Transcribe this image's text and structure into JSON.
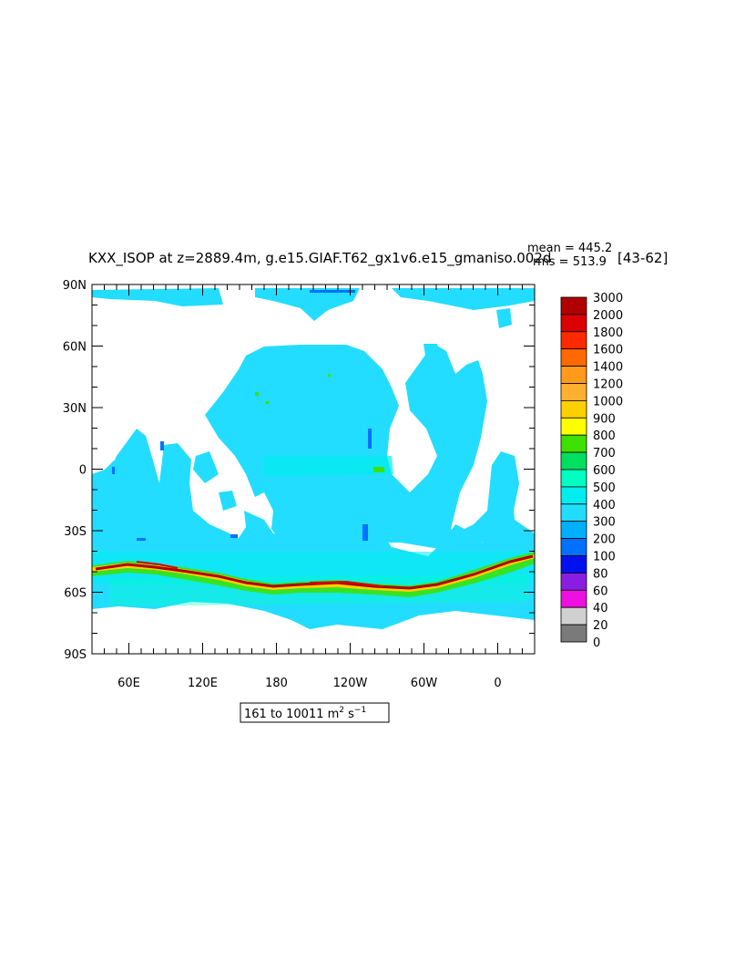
{
  "title": "KXX_ISOP at z=2889.4m, g.e15.GIAF.T62_gx1v6.e15_gmaniso.002d",
  "years": "[43-62]",
  "stats": {
    "mean": "mean = 445.2",
    "rms": "rms = 513.9"
  },
  "range_label": {
    "text": "161 to 10011 m",
    "sup1": "2",
    "mid": " s",
    "sup2": "−1"
  },
  "chart_data": {
    "type": "heatmap",
    "variable": "KXX_ISOP",
    "units": "m2 s-1",
    "depth_m": 2889.4,
    "min": 161,
    "max": 10011,
    "mean": 445.2,
    "rms": 513.9,
    "lon_ticks": [
      "60E",
      "120E",
      "180",
      "120W",
      "60W",
      "0"
    ],
    "lat_ticks": [
      "90N",
      "60N",
      "30N",
      "0",
      "30S",
      "60S",
      "90S"
    ],
    "colorbar": {
      "levels": [
        "3000",
        "2000",
        "1800",
        "1600",
        "1400",
        "1200",
        "1000",
        "900",
        "800",
        "700",
        "600",
        "500",
        "400",
        "300",
        "200",
        "100",
        "80",
        "60",
        "40",
        "20",
        "0"
      ],
      "colors": [
        "#b00000",
        "#dd0000",
        "#ff2a00",
        "#ff6a00",
        "#ff9a1a",
        "#ffb030",
        "#ffd000",
        "#ffff00",
        "#3ee000",
        "#00e060",
        "#00ffc0",
        "#00eeee",
        "#22ddff",
        "#00b0ff",
        "#0070ff",
        "#0010ee",
        "#8a1ee0",
        "#ee10e0",
        "#d0d0d0",
        "#7a7a7a"
      ]
    },
    "grid": false
  },
  "colors": {
    "base_ocean": "#22ddff",
    "land": "#ffffff",
    "acc_high": "#b00000"
  }
}
